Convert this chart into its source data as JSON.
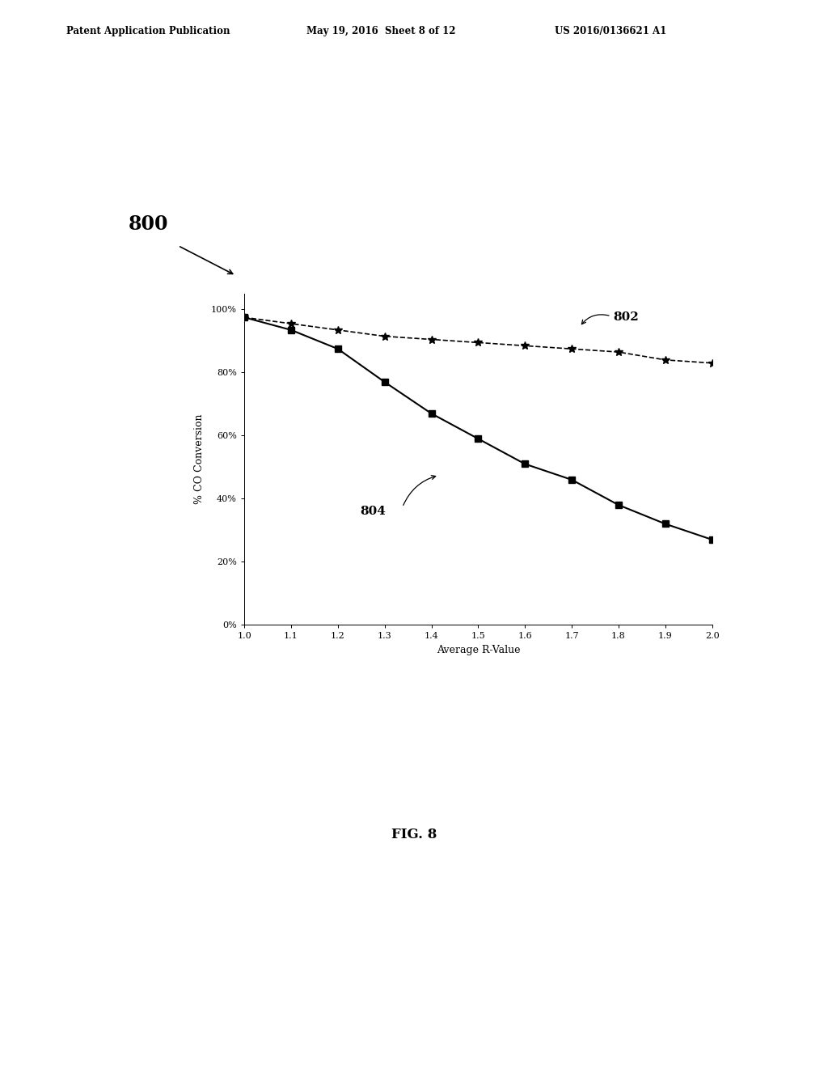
{
  "header_left": "Patent Application Publication",
  "header_mid": "May 19, 2016  Sheet 8 of 12",
  "header_right": "US 2016/0136621 A1",
  "label_800": "800",
  "label_802": "802",
  "label_804": "804",
  "fig_label": "FIG. 8",
  "xlabel": "Average R-Value",
  "ylabel": "% CO Conversion",
  "xlim": [
    1.0,
    2.0
  ],
  "ylim": [
    0.0,
    1.05
  ],
  "xticks": [
    1.0,
    1.1,
    1.2,
    1.3,
    1.4,
    1.5,
    1.6,
    1.7,
    1.8,
    1.9,
    2.0
  ],
  "yticks": [
    0.0,
    0.2,
    0.4,
    0.6,
    0.8,
    1.0
  ],
  "ytick_labels": [
    "0%",
    "20%",
    "40%",
    "60%",
    "80%",
    "100%"
  ],
  "line802_x": [
    1.0,
    1.1,
    1.2,
    1.3,
    1.4,
    1.5,
    1.6,
    1.7,
    1.8,
    1.9,
    2.0
  ],
  "line802_y": [
    0.975,
    0.955,
    0.935,
    0.915,
    0.905,
    0.895,
    0.885,
    0.875,
    0.865,
    0.84,
    0.83
  ],
  "line804_x": [
    1.0,
    1.1,
    1.2,
    1.3,
    1.4,
    1.5,
    1.6,
    1.7,
    1.8,
    1.9,
    2.0
  ],
  "line804_y": [
    0.975,
    0.935,
    0.875,
    0.77,
    0.67,
    0.59,
    0.51,
    0.46,
    0.38,
    0.32,
    0.27
  ],
  "background_color": "#ffffff",
  "line_color": "#000000",
  "fig_width": 10.24,
  "fig_height": 13.2,
  "dpi": 100
}
